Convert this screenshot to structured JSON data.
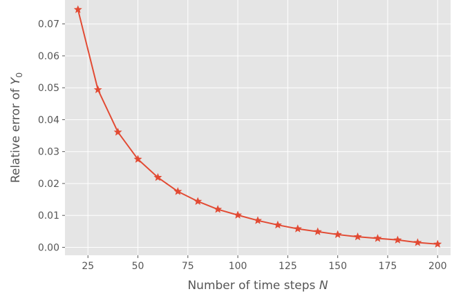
{
  "chart_data": {
    "type": "line",
    "title": "",
    "xlabel_text": "Number of time steps ",
    "xlabel_var": "N",
    "ylabel_text": "Relative error of ",
    "ylabel_var": "Y",
    "ylabel_sub": "0",
    "xlim": [
      13.5,
      206.5
    ],
    "ylim": [
      -0.0025,
      0.0775
    ],
    "xticks": [
      25,
      50,
      75,
      100,
      125,
      150,
      175,
      200
    ],
    "xtick_labels": [
      "25",
      "50",
      "75",
      "100",
      "125",
      "150",
      "175",
      "200"
    ],
    "yticks": [
      0.0,
      0.01,
      0.02,
      0.03,
      0.04,
      0.05,
      0.06,
      0.07
    ],
    "ytick_labels": [
      "0.00",
      "0.01",
      "0.02",
      "0.03",
      "0.04",
      "0.05",
      "0.06",
      "0.07"
    ],
    "grid": true,
    "line_color": "#E24A33",
    "background_color": "#E5E5E5",
    "grid_color": "#FFFFFF",
    "marker": "star",
    "series": [
      {
        "x": [
          20,
          30,
          40,
          50,
          60,
          70,
          80,
          90,
          100,
          110,
          120,
          130,
          140,
          150,
          160,
          170,
          180,
          190,
          200
        ],
        "values": [
          0.0745,
          0.0494,
          0.0361,
          0.0276,
          0.0219,
          0.0175,
          0.0144,
          0.0119,
          0.0101,
          0.0084,
          0.007,
          0.0058,
          0.0049,
          0.004,
          0.0033,
          0.0028,
          0.0023,
          0.0015,
          0.001
        ]
      }
    ]
  }
}
